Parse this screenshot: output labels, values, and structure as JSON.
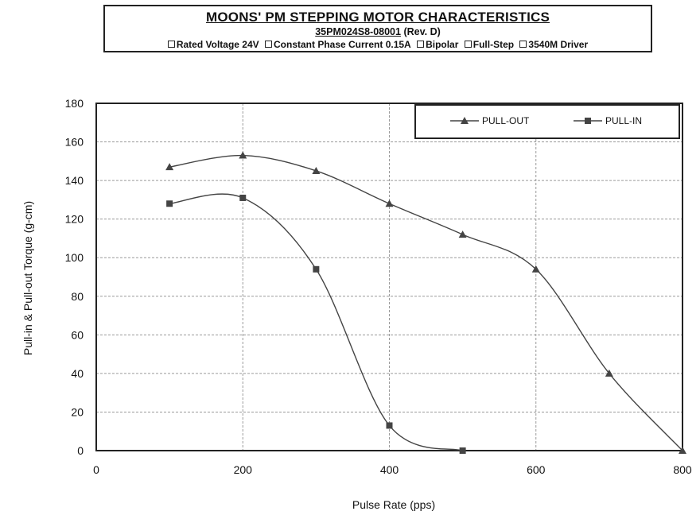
{
  "header": {
    "title": "MOONS' PM STEPPING MOTOR CHARACTERISTICS",
    "model": "35PM024S8-08001",
    "revision": "(Rev. D)",
    "specs": [
      "Rated Voltage 24V",
      "Constant Phase Current 0.15A",
      "Bipolar",
      "Full-Step",
      "3540M Driver"
    ]
  },
  "chart_data": {
    "type": "line",
    "title": "MOONS' PM STEPPING MOTOR CHARACTERISTICS",
    "xlabel": "Pulse Rate (pps)",
    "ylabel": "Pull-in & Pull-out Torque (g-cm)",
    "xlim": [
      0,
      800
    ],
    "ylim": [
      0,
      180
    ],
    "xticks": [
      0,
      200,
      400,
      600,
      800
    ],
    "yticks": [
      0,
      20,
      40,
      60,
      80,
      100,
      120,
      140,
      160,
      180
    ],
    "grid": true,
    "legend_position": "top-right",
    "series": [
      {
        "name": "PULL-OUT",
        "marker": "triangle",
        "color": "#444444",
        "x": [
          100,
          200,
          300,
          400,
          500,
          600,
          700,
          800
        ],
        "y": [
          147,
          153,
          145,
          128,
          112,
          94,
          40,
          0
        ]
      },
      {
        "name": "PULL-IN",
        "marker": "square",
        "color": "#444444",
        "x": [
          100,
          200,
          300,
          400,
          500
        ],
        "y": [
          128,
          131,
          94,
          13,
          0
        ]
      }
    ]
  }
}
